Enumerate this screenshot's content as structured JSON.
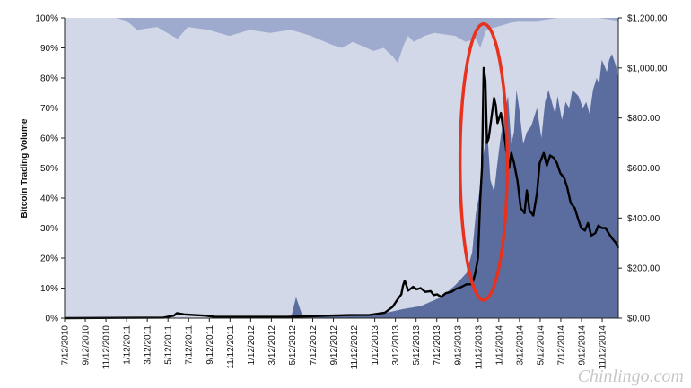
{
  "watermark": "Chinlingo.com",
  "chart_data": {
    "type": "area",
    "title": "",
    "ylabel": "Bitcoin Trading Volume",
    "ylabel_right": "",
    "xlabel": "",
    "ylim": [
      0,
      100
    ],
    "ylim_right": [
      0,
      1200
    ],
    "y_ticks": [
      "0%",
      "10%",
      "20%",
      "30%",
      "40%",
      "50%",
      "60%",
      "70%",
      "80%",
      "90%",
      "100%"
    ],
    "y_right_ticks": [
      "$0.00",
      "$200.00",
      "$400.00",
      "$600.00",
      "$800.00",
      "$1,000.00",
      "$1,200.00"
    ],
    "x_ticks": [
      "7/12/2010",
      "9/12/2010",
      "11/12/2010",
      "1/12/2011",
      "3/12/2011",
      "5/12/2011",
      "7/12/2011",
      "9/12/2011",
      "11/12/2011",
      "1/12/2012",
      "3/12/2012",
      "5/12/2012",
      "7/12/2012",
      "9/12/2012",
      "11/12/2012",
      "1/12/2013",
      "3/12/2013",
      "5/12/2013",
      "7/12/2013",
      "9/12/2013",
      "11/12/2013",
      "1/12/2014",
      "3/12/2014",
      "5/12/2014",
      "7/12/2014",
      "9/12/2014",
      "11/12/2014"
    ],
    "x_range": [
      "2010-07-12",
      "2015-01-08"
    ],
    "legend": "none",
    "grid": false,
    "colors": {
      "top_band": "#9eabce",
      "middle_band": "#d2d8e8",
      "bottom_band": "#5b6d9f",
      "price_line": "#000000",
      "highlight": "#e8321e"
    },
    "series": [
      {
        "role": "bottom_band",
        "kind": "stacked_area_percent",
        "x": [
          "2010-07-12",
          "2012-05-01",
          "2012-05-15",
          "2012-05-28",
          "2012-06-15",
          "2012-10-01",
          "2013-01-12",
          "2013-03-01",
          "2013-04-10",
          "2013-06-01",
          "2013-08-01",
          "2013-09-12",
          "2013-10-15",
          "2013-11-01",
          "2013-11-12",
          "2013-11-20",
          "2013-11-28",
          "2013-12-05",
          "2013-12-12",
          "2013-12-18",
          "2013-12-25",
          "2014-01-05",
          "2014-01-15",
          "2014-01-25",
          "2014-02-05",
          "2014-02-15",
          "2014-02-25",
          "2014-03-05",
          "2014-03-12",
          "2014-03-20",
          "2014-04-01",
          "2014-04-12",
          "2014-04-25",
          "2014-05-12",
          "2014-05-25",
          "2014-06-05",
          "2014-06-15",
          "2014-06-25",
          "2014-07-05",
          "2014-07-12",
          "2014-07-25",
          "2014-08-05",
          "2014-08-15",
          "2014-08-25",
          "2014-09-12",
          "2014-09-25",
          "2014-10-05",
          "2014-10-15",
          "2014-10-25",
          "2014-11-05",
          "2014-11-12",
          "2014-11-20",
          "2014-11-28",
          "2014-12-05",
          "2014-12-12",
          "2014-12-20",
          "2015-01-01",
          "2015-01-08"
        ],
        "values": [
          0,
          0,
          1,
          7,
          1,
          1,
          1,
          2,
          3,
          4,
          7,
          11,
          15,
          22,
          35,
          40,
          48,
          55,
          60,
          58,
          46,
          42,
          52,
          61,
          68,
          74,
          58,
          62,
          76,
          70,
          58,
          62,
          64,
          70,
          60,
          72,
          76,
          72,
          68,
          74,
          66,
          72,
          70,
          76,
          74,
          70,
          72,
          68,
          76,
          80,
          78,
          86,
          84,
          82,
          86,
          88,
          84,
          80
        ]
      },
      {
        "role": "top_band",
        "kind": "stacked_area_percent_top_edge",
        "x": [
          "2010-07-12",
          "2010-12-12",
          "2011-01-12",
          "2011-02-12",
          "2011-04-12",
          "2011-05-12",
          "2011-06-12",
          "2011-07-12",
          "2011-09-12",
          "2011-11-12",
          "2012-01-12",
          "2012-03-12",
          "2012-05-12",
          "2012-06-12",
          "2012-07-12",
          "2012-09-12",
          "2012-10-12",
          "2012-11-12",
          "2013-01-12",
          "2013-02-12",
          "2013-03-12",
          "2013-03-25",
          "2013-04-12",
          "2013-04-25",
          "2013-05-12",
          "2013-06-12",
          "2013-07-12",
          "2013-09-12",
          "2013-10-12",
          "2013-11-12",
          "2013-11-25",
          "2013-12-12",
          "2014-01-12",
          "2014-02-12",
          "2014-03-12",
          "2014-05-12",
          "2014-07-12",
          "2014-09-12",
          "2014-11-12",
          "2015-01-08"
        ],
        "values": [
          100,
          100,
          99,
          96,
          97,
          95,
          93,
          97,
          96,
          94,
          96,
          95,
          96,
          95,
          94,
          91,
          90,
          92,
          89,
          90,
          87,
          85,
          91,
          94,
          92,
          94,
          95,
          94,
          92,
          93,
          90,
          96,
          97,
          98,
          99,
          99,
          100,
          100,
          100,
          99
        ]
      },
      {
        "role": "price_line",
        "kind": "line_usd",
        "x": [
          "2010-07-12",
          "2011-05-01",
          "2011-06-01",
          "2011-06-10",
          "2011-07-01",
          "2011-08-01",
          "2011-09-01",
          "2011-10-01",
          "2012-01-01",
          "2012-03-01",
          "2012-05-01",
          "2012-07-01",
          "2012-09-01",
          "2012-11-01",
          "2013-01-01",
          "2013-02-15",
          "2013-03-10",
          "2013-03-25",
          "2013-04-05",
          "2013-04-10",
          "2013-04-15",
          "2013-04-25",
          "2013-05-10",
          "2013-05-20",
          "2013-06-01",
          "2013-06-15",
          "2013-07-01",
          "2013-07-10",
          "2013-07-20",
          "2013-08-01",
          "2013-08-15",
          "2013-09-01",
          "2013-09-15",
          "2013-10-01",
          "2013-10-15",
          "2013-11-01",
          "2013-11-10",
          "2013-11-18",
          "2013-11-25",
          "2013-11-30",
          "2013-12-05",
          "2013-12-10",
          "2013-12-15",
          "2013-12-20",
          "2013-12-28",
          "2014-01-05",
          "2014-01-10",
          "2014-01-15",
          "2014-01-25",
          "2014-02-05",
          "2014-02-10",
          "2014-02-18",
          "2014-02-25",
          "2014-03-05",
          "2014-03-15",
          "2014-03-25",
          "2014-04-05",
          "2014-04-12",
          "2014-04-20",
          "2014-05-01",
          "2014-05-12",
          "2014-05-20",
          "2014-06-01",
          "2014-06-10",
          "2014-06-20",
          "2014-07-01",
          "2014-07-10",
          "2014-07-20",
          "2014-08-01",
          "2014-08-10",
          "2014-08-20",
          "2014-09-01",
          "2014-09-10",
          "2014-09-20",
          "2014-10-01",
          "2014-10-10",
          "2014-10-20",
          "2014-11-01",
          "2014-11-10",
          "2014-11-20",
          "2014-12-01",
          "2014-12-10",
          "2014-12-20",
          "2015-01-01",
          "2015-01-08"
        ],
        "values": [
          0,
          2,
          10,
          20,
          15,
          12,
          10,
          5,
          5,
          5,
          5,
          7,
          10,
          12,
          13,
          22,
          45,
          75,
          95,
          130,
          150,
          110,
          125,
          115,
          120,
          105,
          108,
          92,
          95,
          85,
          100,
          105,
          118,
          125,
          135,
          135,
          180,
          240,
          480,
          600,
          1000,
          950,
          700,
          720,
          800,
          880,
          850,
          780,
          820,
          720,
          670,
          600,
          660,
          620,
          550,
          440,
          420,
          510,
          430,
          410,
          500,
          620,
          660,
          610,
          650,
          640,
          620,
          580,
          560,
          520,
          460,
          440,
          400,
          360,
          350,
          380,
          330,
          340,
          370,
          360,
          360,
          340,
          320,
          300,
          280
        ]
      }
    ],
    "annotation": {
      "type": "ellipse",
      "color": "#e8321e",
      "center": [
        "2013-12-05",
        52
      ],
      "rx_days": 70,
      "ry": 46
    }
  }
}
